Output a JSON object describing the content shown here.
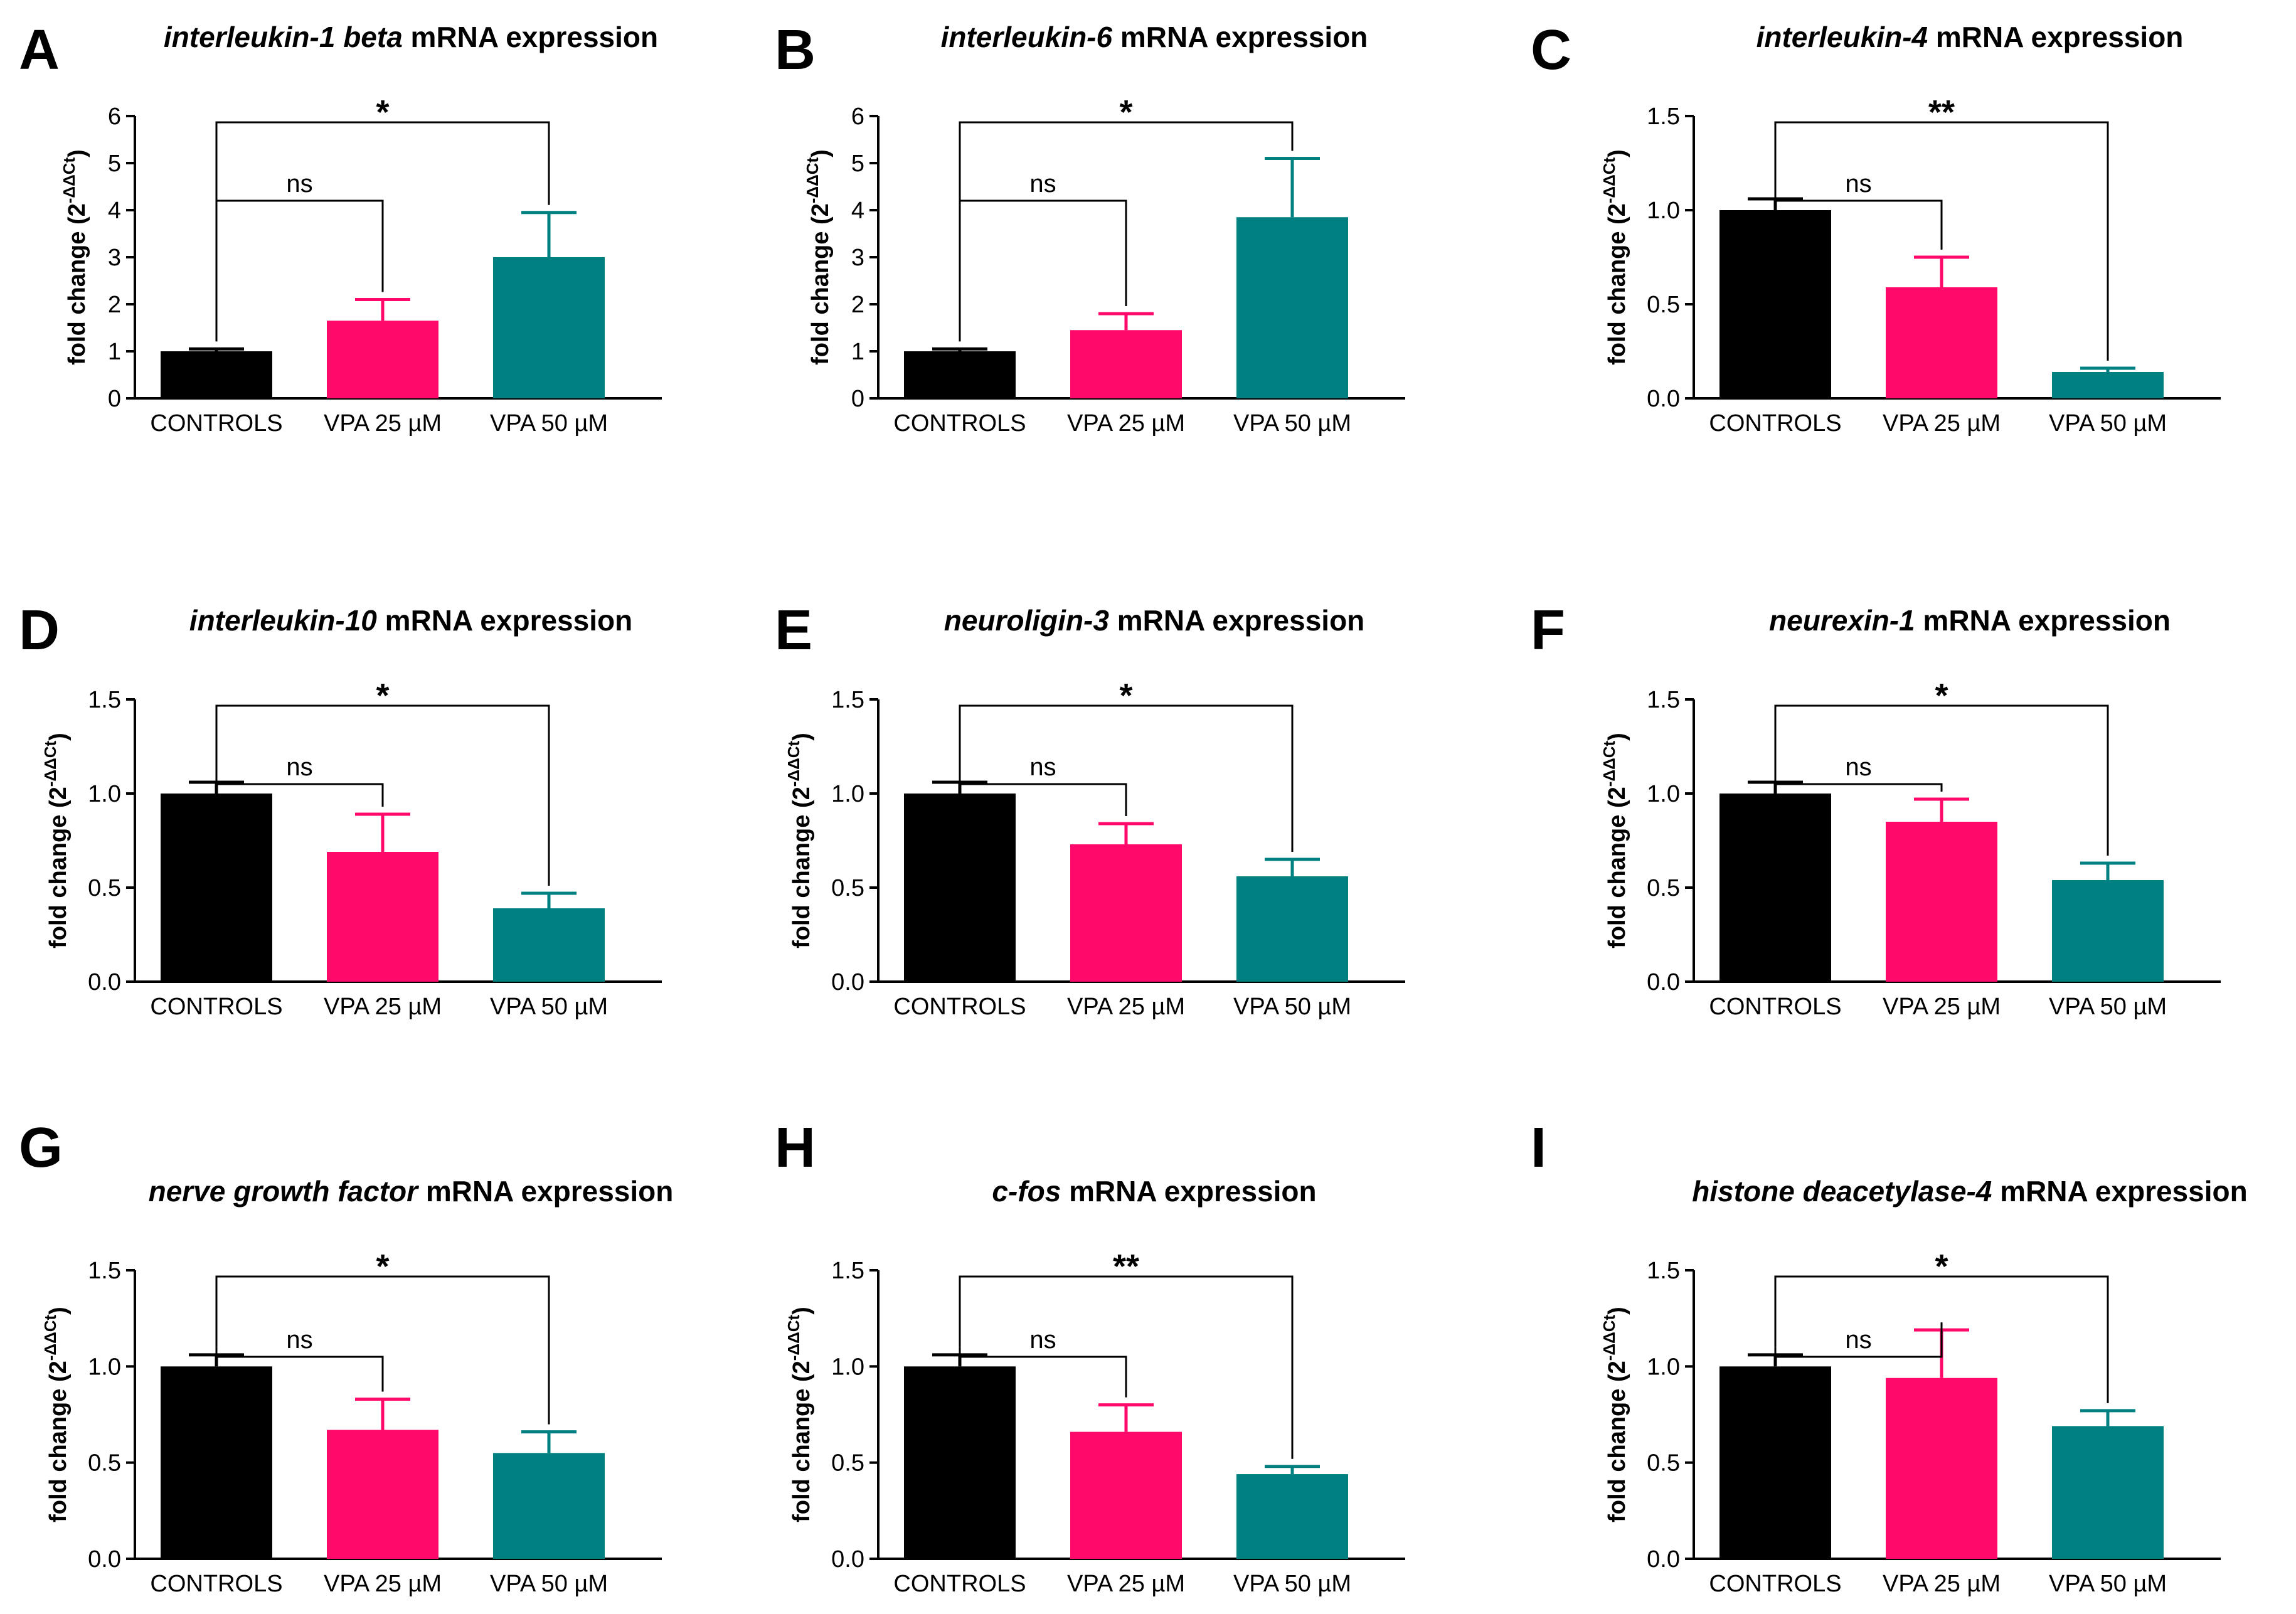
{
  "colors": {
    "CONTROLS": "#000000",
    "VPA 25 µM": "#ff0a6b",
    "VPA 50 µM": "#008080"
  },
  "y_axis_label": "fold change (2",
  "y_axis_label_sup": "-ΔΔCt",
  "y_axis_label_close": ")",
  "chart_data": [
    {
      "type": "bar",
      "panel": "A",
      "title_italic": "interleukin-1 beta",
      "title_rest": " mRNA expression",
      "categories": [
        "CONTROLS",
        "VPA 25 µM",
        "VPA 50 µM"
      ],
      "values": [
        1.0,
        1.65,
        3.0
      ],
      "errors": [
        0.05,
        0.45,
        0.95
      ],
      "ylim": [
        0,
        6
      ],
      "yticks": [
        "0",
        "1",
        "2",
        "3",
        "4",
        "5",
        "6"
      ],
      "comparisons": [
        {
          "from": 0,
          "to": 1,
          "label": "ns"
        },
        {
          "from": 0,
          "to": 2,
          "label": "*"
        }
      ]
    },
    {
      "type": "bar",
      "panel": "B",
      "title_italic": "interleukin-6",
      "title_rest": " mRNA expression",
      "categories": [
        "CONTROLS",
        "VPA 25 µM",
        "VPA 50 µM"
      ],
      "values": [
        1.0,
        1.45,
        3.85
      ],
      "errors": [
        0.05,
        0.35,
        1.25
      ],
      "ylim": [
        0,
        6
      ],
      "yticks": [
        "0",
        "1",
        "2",
        "3",
        "4",
        "5",
        "6"
      ],
      "comparisons": [
        {
          "from": 0,
          "to": 1,
          "label": "ns"
        },
        {
          "from": 0,
          "to": 2,
          "label": "*"
        }
      ]
    },
    {
      "type": "bar",
      "panel": "C",
      "title_italic": "interleukin-4",
      "title_rest": " mRNA expression",
      "categories": [
        "CONTROLS",
        "VPA 25 µM",
        "VPA 50 µM"
      ],
      "values": [
        1.0,
        0.59,
        0.14
      ],
      "errors": [
        0.06,
        0.16,
        0.02
      ],
      "ylim": [
        0,
        1.5
      ],
      "yticks": [
        "0.0",
        "0.5",
        "1.0",
        "1.5"
      ],
      "comparisons": [
        {
          "from": 0,
          "to": 1,
          "label": "ns"
        },
        {
          "from": 0,
          "to": 2,
          "label": "**"
        }
      ]
    },
    {
      "type": "bar",
      "panel": "D",
      "title_italic": "interleukin-10",
      "title_rest": " mRNA expression",
      "categories": [
        "CONTROLS",
        "VPA 25 µM",
        "VPA 50 µM"
      ],
      "values": [
        1.0,
        0.69,
        0.39
      ],
      "errors": [
        0.06,
        0.2,
        0.08
      ],
      "ylim": [
        0,
        1.5
      ],
      "yticks": [
        "0.0",
        "0.5",
        "1.0",
        "1.5"
      ],
      "comparisons": [
        {
          "from": 0,
          "to": 1,
          "label": "ns"
        },
        {
          "from": 0,
          "to": 2,
          "label": "*"
        }
      ]
    },
    {
      "type": "bar",
      "panel": "E",
      "title_italic": "neuroligin-3",
      "title_rest": " mRNA expression",
      "categories": [
        "CONTROLS",
        "VPA 25 µM",
        "VPA 50 µM"
      ],
      "values": [
        1.0,
        0.73,
        0.56
      ],
      "errors": [
        0.06,
        0.11,
        0.09
      ],
      "ylim": [
        0,
        1.5
      ],
      "yticks": [
        "0.0",
        "0.5",
        "1.0",
        "1.5"
      ],
      "comparisons": [
        {
          "from": 0,
          "to": 1,
          "label": "ns"
        },
        {
          "from": 0,
          "to": 2,
          "label": "*"
        }
      ]
    },
    {
      "type": "bar",
      "panel": "F",
      "title_italic": "neurexin-1",
      "title_rest": " mRNA expression",
      "categories": [
        "CONTROLS",
        "VPA 25 µM",
        "VPA 50 µM"
      ],
      "values": [
        1.0,
        0.85,
        0.54
      ],
      "errors": [
        0.06,
        0.12,
        0.09
      ],
      "ylim": [
        0,
        1.5
      ],
      "yticks": [
        "0.0",
        "0.5",
        "1.0",
        "1.5"
      ],
      "comparisons": [
        {
          "from": 0,
          "to": 1,
          "label": "ns"
        },
        {
          "from": 0,
          "to": 2,
          "label": "*"
        }
      ]
    },
    {
      "type": "bar",
      "panel": "G",
      "title_italic": "nerve growth factor",
      "title_rest": " mRNA expression",
      "categories": [
        "CONTROLS",
        "VPA 25 µM",
        "VPA 50 µM"
      ],
      "values": [
        1.0,
        0.67,
        0.55
      ],
      "errors": [
        0.06,
        0.16,
        0.11
      ],
      "ylim": [
        0,
        1.5
      ],
      "yticks": [
        "0.0",
        "0.5",
        "1.0",
        "1.5"
      ],
      "comparisons": [
        {
          "from": 0,
          "to": 1,
          "label": "ns"
        },
        {
          "from": 0,
          "to": 2,
          "label": "*"
        }
      ]
    },
    {
      "type": "bar",
      "panel": "H",
      "title_italic": "c-fos",
      "title_rest": " mRNA expression",
      "categories": [
        "CONTROLS",
        "VPA 25 µM",
        "VPA 50 µM"
      ],
      "values": [
        1.0,
        0.66,
        0.44
      ],
      "errors": [
        0.06,
        0.14,
        0.04
      ],
      "ylim": [
        0,
        1.5
      ],
      "yticks": [
        "0.0",
        "0.5",
        "1.0",
        "1.5"
      ],
      "comparisons": [
        {
          "from": 0,
          "to": 1,
          "label": "ns"
        },
        {
          "from": 0,
          "to": 2,
          "label": "**"
        }
      ]
    },
    {
      "type": "bar",
      "panel": "I",
      "title_italic": "histone deacetylase-4",
      "title_rest": " mRNA expression",
      "categories": [
        "CONTROLS",
        "VPA 25 µM",
        "VPA 50 µM"
      ],
      "values": [
        1.0,
        0.94,
        0.69
      ],
      "errors": [
        0.06,
        0.25,
        0.08
      ],
      "ylim": [
        0,
        1.5
      ],
      "yticks": [
        "0.0",
        "0.5",
        "1.0",
        "1.5"
      ],
      "comparisons": [
        {
          "from": 0,
          "to": 1,
          "label": "ns"
        },
        {
          "from": 0,
          "to": 2,
          "label": "*"
        }
      ]
    }
  ]
}
